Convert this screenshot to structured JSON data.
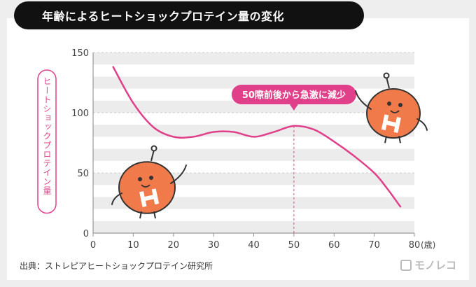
{
  "title": "年齢によるヒートショックプロテイン量の変化",
  "source": "出典：ストレピアヒートショックプロテイン研究所",
  "logo": "モノレコ",
  "chart_data": {
    "type": "line",
    "ylabel": "ヒートショックプロテイン量",
    "x_unit": "(歳)",
    "xlim": [
      0,
      80
    ],
    "ylim": [
      0,
      150
    ],
    "x_ticks": [
      0,
      10,
      20,
      30,
      40,
      50,
      60,
      70,
      80
    ],
    "y_ticks": [
      0,
      50,
      100,
      150
    ],
    "grid": "horizontal stripes",
    "series": [
      {
        "color": "#e0408a",
        "x": [
          5,
          10,
          15,
          20,
          25,
          30,
          35,
          40,
          45,
          50,
          55,
          60,
          65,
          70,
          73,
          76.5
        ],
        "y": [
          138,
          108,
          88,
          80,
          80,
          84,
          84,
          80,
          84,
          89,
          86,
          76,
          64,
          50,
          38,
          22
        ]
      }
    ],
    "annotation": {
      "text": "50際前後から急激に減少",
      "x": 50,
      "y": 89,
      "color": "#e0408a"
    }
  },
  "colors": {
    "accent": "#e0408a",
    "mascot": "#f07a4a",
    "stripe": "#ececec"
  }
}
